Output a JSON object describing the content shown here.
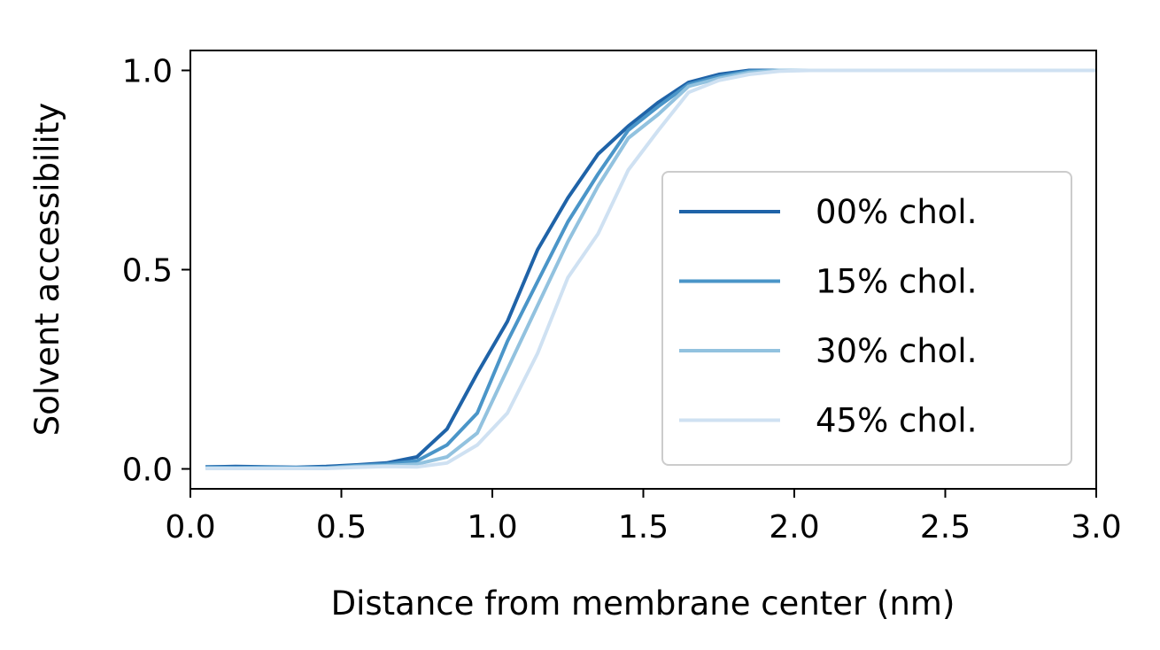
{
  "chart_data": {
    "type": "line",
    "title": "",
    "xlabel": "Distance from membrane center (nm)",
    "ylabel": "Solvent accessibility",
    "xlim": [
      0.0,
      3.0
    ],
    "ylim": [
      -0.05,
      1.05
    ],
    "xticks": [
      0.0,
      0.5,
      1.0,
      1.5,
      2.0,
      2.5,
      3.0
    ],
    "xtick_labels": [
      "0.0",
      "0.5",
      "1.0",
      "1.5",
      "2.0",
      "2.5",
      "3.0"
    ],
    "yticks": [
      0.0,
      0.5,
      1.0
    ],
    "ytick_labels": [
      "0.0",
      "0.5",
      "1.0"
    ],
    "grid": false,
    "legend_position": "center-right",
    "x": [
      0.05,
      0.15,
      0.25,
      0.35,
      0.45,
      0.55,
      0.65,
      0.75,
      0.85,
      0.95,
      1.05,
      1.15,
      1.25,
      1.35,
      1.45,
      1.55,
      1.65,
      1.75,
      1.85,
      1.95,
      2.05,
      2.15,
      2.25,
      2.35,
      2.45,
      2.55,
      2.65,
      2.75,
      2.85,
      2.95,
      3.05
    ],
    "series": [
      {
        "name": "00% chol.",
        "color": "#1f63a8",
        "values": [
          0.005,
          0.006,
          0.005,
          0.004,
          0.006,
          0.01,
          0.015,
          0.03,
          0.1,
          0.24,
          0.37,
          0.55,
          0.68,
          0.79,
          0.86,
          0.92,
          0.97,
          0.99,
          1.0,
          1.0,
          1.0,
          1.0,
          1.0,
          1.0,
          1.0,
          1.0,
          1.0,
          1.0,
          1.0,
          1.0,
          1.0
        ]
      },
      {
        "name": "15% chol.",
        "color": "#4a95c8",
        "values": [
          0.004,
          0.003,
          0.004,
          0.003,
          0.003,
          0.008,
          0.012,
          0.02,
          0.06,
          0.14,
          0.32,
          0.47,
          0.62,
          0.74,
          0.85,
          0.91,
          0.965,
          0.985,
          0.998,
          1.0,
          1.0,
          1.0,
          1.0,
          1.0,
          1.0,
          1.0,
          1.0,
          1.0,
          1.0,
          1.0,
          1.0
        ]
      },
      {
        "name": "30% chol.",
        "color": "#92c2df",
        "values": [
          0.002,
          0.002,
          0.002,
          0.002,
          0.002,
          0.006,
          0.008,
          0.012,
          0.03,
          0.09,
          0.25,
          0.41,
          0.57,
          0.71,
          0.83,
          0.89,
          0.96,
          0.98,
          0.995,
          1.0,
          1.0,
          1.0,
          1.0,
          1.0,
          1.0,
          1.0,
          1.0,
          1.0,
          1.0,
          1.0,
          1.0
        ]
      },
      {
        "name": "45% chol.",
        "color": "#cfe1f2",
        "values": [
          0.001,
          0.001,
          0.001,
          0.001,
          0.001,
          0.004,
          0.006,
          0.005,
          0.015,
          0.06,
          0.14,
          0.29,
          0.48,
          0.59,
          0.75,
          0.85,
          0.945,
          0.975,
          0.99,
          0.998,
          1.0,
          1.0,
          1.0,
          1.0,
          1.0,
          1.0,
          1.0,
          1.0,
          1.0,
          1.0,
          1.0
        ]
      }
    ]
  }
}
